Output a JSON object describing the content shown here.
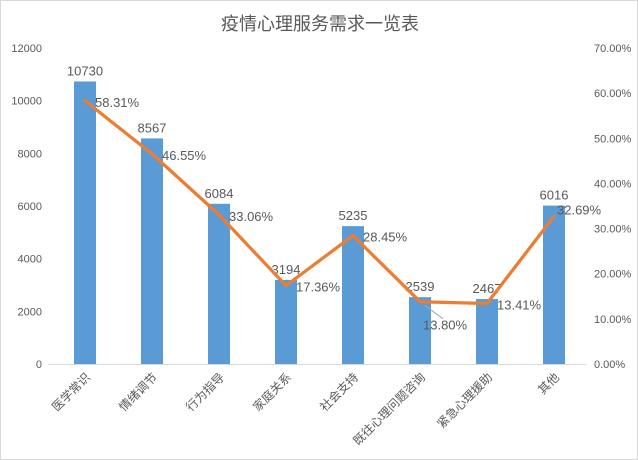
{
  "chart_data": {
    "type": "bar",
    "subtype": "combo-bar-line",
    "title": "疫情心理服务需求一览表",
    "categories": [
      "医学常识",
      "情绪调节",
      "行为指导",
      "家庭关系",
      "社会支持",
      "既往心理问题咨询",
      "紧急心理援助",
      "其他"
    ],
    "series": [
      {
        "role": "bar",
        "axis": "left",
        "values": [
          10730,
          8567,
          6084,
          3194,
          5235,
          2539,
          2467,
          6016
        ],
        "labels": [
          "10730",
          "8567",
          "6084",
          "3194",
          "5235",
          "2539",
          "2467",
          "6016"
        ],
        "color": "#5B9BD5"
      },
      {
        "role": "line",
        "axis": "right",
        "values": [
          58.31,
          46.55,
          33.06,
          17.36,
          28.45,
          13.8,
          13.41,
          32.69
        ],
        "labels": [
          "58.31%",
          "46.55%",
          "33.06%",
          "17.36%",
          "28.45%",
          "13.80%",
          "13.41%",
          "32.69%"
        ],
        "color": "#ED7D31"
      }
    ],
    "left_axis": {
      "min": 0,
      "max": 12000,
      "ticks": [
        0,
        2000,
        4000,
        6000,
        8000,
        10000,
        12000
      ],
      "tick_labels": [
        "0",
        "2000",
        "4000",
        "6000",
        "8000",
        "10000",
        "12000"
      ]
    },
    "right_axis": {
      "min": 0,
      "max": 70,
      "ticks": [
        0,
        10,
        20,
        30,
        40,
        50,
        60,
        70
      ],
      "tick_labels": [
        "0.00%",
        "10.00%",
        "20.00%",
        "30.00%",
        "40.00%",
        "50.00%",
        "60.00%",
        "70.00%"
      ]
    },
    "grid": false,
    "legend": "none"
  },
  "colors": {
    "bar": "#5B9BD5",
    "line": "#ED7D31",
    "text": "#595959",
    "axis_line": "#D9D9D9",
    "leader_line": "#A6A6A6",
    "border": "#D9D9D9",
    "background": "#FFFFFF"
  }
}
